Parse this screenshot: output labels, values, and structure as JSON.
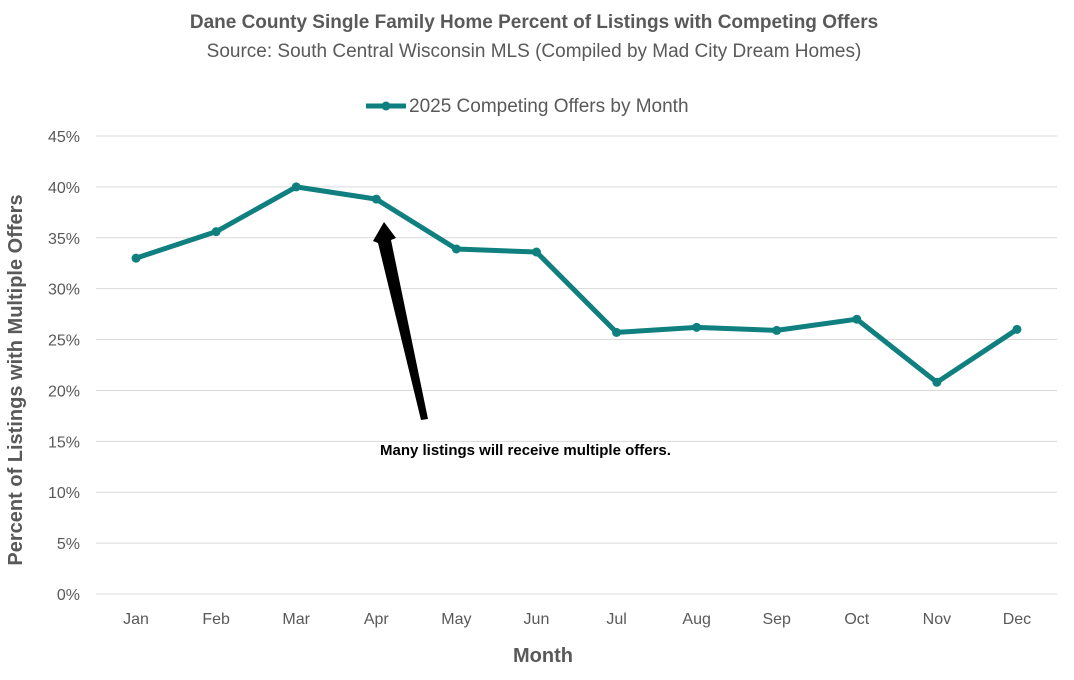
{
  "chart_data": {
    "type": "line",
    "title": "Dane County Single Family Home Percent of Listings with Competing Offers",
    "subtitle": "Source: South Central Wisconsin MLS (Compiled by Mad City Dream Homes)",
    "xlabel": "Month",
    "ylabel": "Percent of Listings with Multiple Offers",
    "categories": [
      "Jan",
      "Feb",
      "Mar",
      "Apr",
      "May",
      "Jun",
      "Jul",
      "Aug",
      "Sep",
      "Oct",
      "Nov",
      "Dec"
    ],
    "series": [
      {
        "name": "2025 Competing Offers by Month",
        "color": "#0f7f7f",
        "values": [
          33.0,
          35.6,
          40.0,
          38.8,
          33.9,
          33.6,
          25.7,
          26.2,
          25.9,
          27.0,
          20.8,
          26.0
        ]
      }
    ],
    "ylim": [
      0,
      45
    ],
    "yticks": [
      0,
      5,
      10,
      15,
      20,
      25,
      30,
      35,
      40,
      45
    ],
    "ytick_labels": [
      "0%",
      "5%",
      "10%",
      "15%",
      "20%",
      "25%",
      "30%",
      "35%",
      "40%",
      "45%"
    ],
    "grid": true,
    "legend": "top-center",
    "annotation": {
      "text": "Many listings will receive multiple offers.",
      "points_to_category": "Apr"
    }
  }
}
